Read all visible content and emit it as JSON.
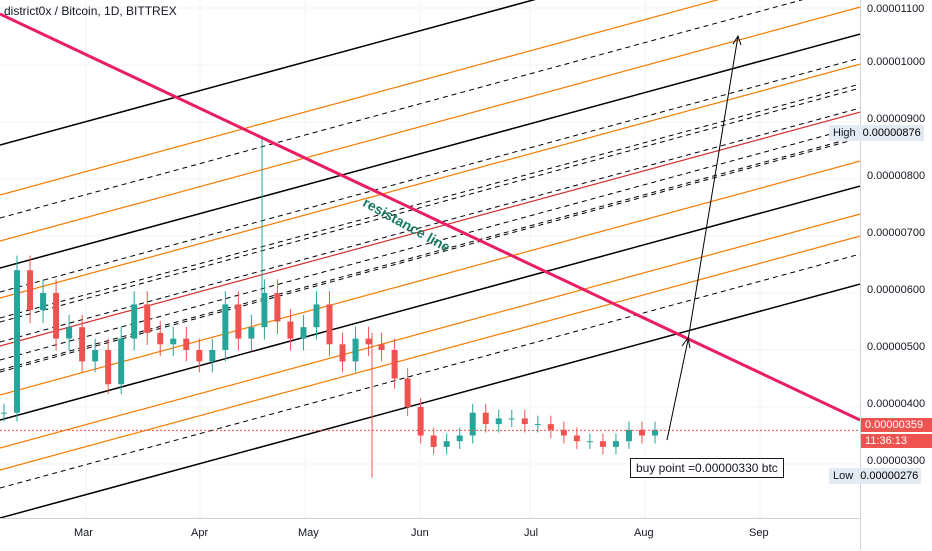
{
  "title": "district0x / Bitcoin, 1D, BITTREX",
  "price_ticks": [
    "0.00001100",
    "0.00001000",
    "0.00000900",
    "0.00000800",
    "0.00000700",
    "0.00000600",
    "0.00000500",
    "0.00000400",
    "0.00000300"
  ],
  "time_labels": [
    "Mar",
    "Apr",
    "May",
    "Jun",
    "Jul",
    "Aug",
    "Sep"
  ],
  "high": {
    "label": "High",
    "value": "0.00000876"
  },
  "low": {
    "label": "Low",
    "value": "0.00000276"
  },
  "current": {
    "price": "0.00000359",
    "countdown": "11:36:13"
  },
  "annotations": {
    "buy_point": "buy point =0.00000330 btc",
    "resistance": "resistance line"
  },
  "colors": {
    "resistance": "#e91e63",
    "channel_black": "#000000",
    "channel_orange": "#f57c00",
    "channel_red": "#d32f2f",
    "bull": "#26a69a",
    "bear": "#ef5350",
    "current_price": "#ef5350"
  },
  "chart_data": {
    "type": "candlestick",
    "title": "district0x / Bitcoin, 1D, BITTREX",
    "ylim": [
      2.5e-06,
      1.12e-05
    ],
    "y_ticks": [
      1.1e-05,
      1e-05,
      9e-06,
      8e-06,
      7e-06,
      6e-06,
      5e-06,
      4e-06,
      3e-06
    ],
    "x_ticks": [
      "Mar",
      "Apr",
      "May",
      "Jun",
      "Jul",
      "Aug",
      "Sep"
    ],
    "high": 8.76e-06,
    "low": 2.76e-06,
    "last_price": 3.59e-06,
    "close_series": [
      3.9e-06,
      6.4e-06,
      5.7e-06,
      6e-06,
      5.2e-06,
      5.4e-06,
      4.8e-06,
      5e-06,
      4.4e-06,
      5.2e-06,
      5.8e-06,
      5.3e-06,
      5.1e-06,
      5.2e-06,
      5e-06,
      4.8e-06,
      5e-06,
      5.8e-06,
      5.2e-06,
      5.4e-06,
      6e-06,
      5.5e-06,
      5.2e-06,
      5.4e-06,
      5.8e-06,
      5.1e-06,
      4.8e-06,
      5.2e-06,
      5.1e-06,
      5e-06,
      4.5e-06,
      4e-06,
      3.5e-06,
      3.3e-06,
      3.4e-06,
      3.5e-06,
      3.9e-06,
      3.7e-06,
      3.8e-06,
      3.8e-06,
      3.7e-06,
      3.7e-06,
      3.6e-06,
      3.5e-06,
      3.4e-06,
      3.4e-06,
      3.3e-06,
      3.4e-06,
      3.6e-06,
      3.5e-06,
      3.6e-06
    ]
  }
}
